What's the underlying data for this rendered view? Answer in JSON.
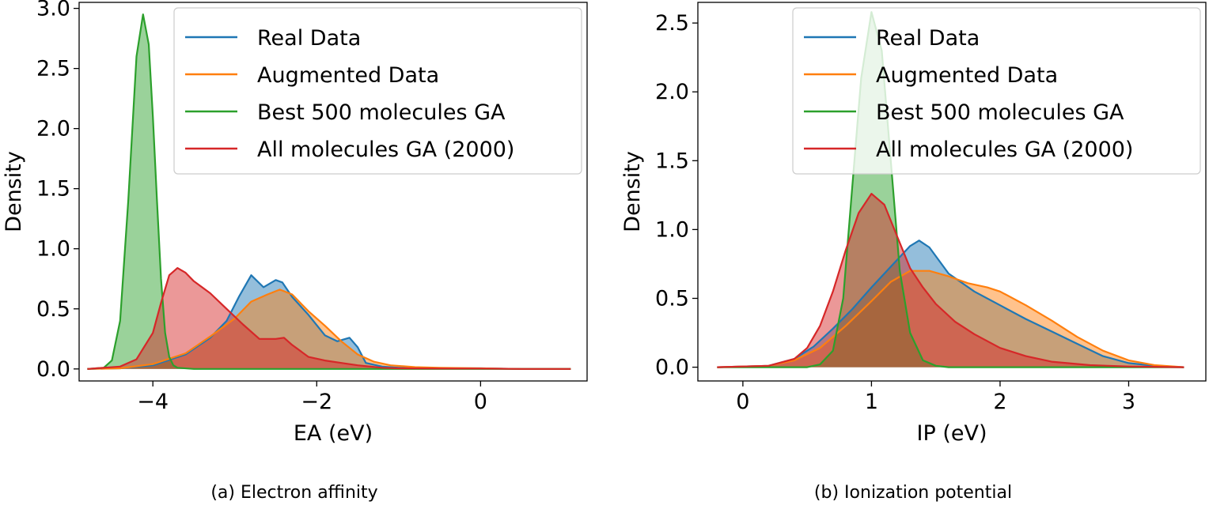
{
  "chart_data": [
    {
      "type": "area",
      "caption": "(a) Electron affinity",
      "xlabel": "EA (eV)",
      "ylabel": "Density",
      "xlim": [
        -4.9,
        1.3
      ],
      "ylim": [
        -0.1,
        3.05
      ],
      "xticks": [
        -4,
        -2,
        0
      ],
      "xtick_labels": [
        "−4",
        "−2",
        "0"
      ],
      "yticks": [
        0.0,
        0.5,
        1.0,
        1.5,
        2.0,
        2.5,
        3.0
      ],
      "ytick_labels": [
        "0.0",
        "0.5",
        "1.0",
        "1.5",
        "2.0",
        "2.5",
        "3.0"
      ],
      "grid": false,
      "legend_position": "top-right",
      "series": [
        {
          "name": "Real Data",
          "color": "#1f77b4",
          "x": [
            -4.8,
            -4.4,
            -4.0,
            -3.6,
            -3.3,
            -3.1,
            -2.95,
            -2.8,
            -2.65,
            -2.5,
            -2.42,
            -2.3,
            -2.1,
            -1.9,
            -1.75,
            -1.6,
            -1.5,
            -1.4,
            -1.2,
            -1.0,
            -0.5,
            0.0,
            0.5,
            1.1
          ],
          "y": [
            0.0,
            0.005,
            0.03,
            0.12,
            0.26,
            0.4,
            0.6,
            0.78,
            0.68,
            0.74,
            0.72,
            0.6,
            0.45,
            0.28,
            0.23,
            0.26,
            0.18,
            0.05,
            0.02,
            0.01,
            0.005,
            0.005,
            0.0,
            0.0
          ]
        },
        {
          "name": "Augmented Data",
          "color": "#ff7f0e",
          "x": [
            -4.8,
            -4.4,
            -4.0,
            -3.6,
            -3.3,
            -3.0,
            -2.8,
            -2.6,
            -2.45,
            -2.3,
            -2.1,
            -1.9,
            -1.7,
            -1.5,
            -1.3,
            -1.1,
            -0.8,
            -0.5,
            0.0,
            0.5,
            1.1
          ],
          "y": [
            0.0,
            0.005,
            0.04,
            0.13,
            0.27,
            0.42,
            0.56,
            0.62,
            0.66,
            0.62,
            0.48,
            0.36,
            0.23,
            0.12,
            0.06,
            0.03,
            0.015,
            0.01,
            0.005,
            0.0,
            0.0
          ]
        },
        {
          "name": "Best 500 molecules GA",
          "color": "#2ca02c",
          "x": [
            -4.8,
            -4.6,
            -4.5,
            -4.4,
            -4.3,
            -4.2,
            -4.12,
            -4.05,
            -4.0,
            -3.95,
            -3.9,
            -3.85,
            -3.8,
            -3.75,
            -3.7,
            -3.5,
            -3.0,
            1.1
          ],
          "y": [
            0.0,
            0.01,
            0.07,
            0.4,
            1.4,
            2.6,
            2.95,
            2.7,
            2.1,
            1.4,
            0.75,
            0.3,
            0.1,
            0.03,
            0.01,
            0.0,
            0.0,
            0.0
          ]
        },
        {
          "name": "All molecules GA (2000)",
          "color": "#d62728",
          "x": [
            -4.8,
            -4.4,
            -4.2,
            -4.0,
            -3.9,
            -3.8,
            -3.7,
            -3.6,
            -3.5,
            -3.3,
            -3.1,
            -2.9,
            -2.7,
            -2.5,
            -2.4,
            -2.3,
            -2.1,
            -1.9,
            -1.7,
            -1.5,
            -1.2,
            -1.0,
            -0.5,
            0.0,
            0.5,
            1.1
          ],
          "y": [
            0.0,
            0.02,
            0.08,
            0.3,
            0.55,
            0.78,
            0.84,
            0.8,
            0.73,
            0.63,
            0.5,
            0.37,
            0.25,
            0.25,
            0.26,
            0.2,
            0.1,
            0.07,
            0.05,
            0.03,
            0.01,
            0.005,
            0.003,
            0.003,
            0.0,
            0.0
          ]
        }
      ]
    },
    {
      "type": "area",
      "caption": "(b) Ionization potential",
      "xlabel": "IP (eV)",
      "ylabel": "Density",
      "xlim": [
        -0.35,
        3.6
      ],
      "ylim": [
        -0.1,
        2.65
      ],
      "xticks": [
        0,
        1,
        2,
        3
      ],
      "xtick_labels": [
        "0",
        "1",
        "2",
        "3"
      ],
      "yticks": [
        0.0,
        0.5,
        1.0,
        1.5,
        2.0,
        2.5
      ],
      "ytick_labels": [
        "0.0",
        "0.5",
        "1.0",
        "1.5",
        "2.0",
        "2.5"
      ],
      "grid": false,
      "legend_position": "top-right",
      "series": [
        {
          "name": "Real Data",
          "color": "#1f77b4",
          "x": [
            -0.2,
            0.2,
            0.4,
            0.55,
            0.7,
            0.85,
            1.0,
            1.1,
            1.2,
            1.3,
            1.37,
            1.45,
            1.6,
            1.8,
            2.0,
            2.2,
            2.4,
            2.6,
            2.8,
            3.0,
            3.2,
            3.43
          ],
          "y": [
            0.0,
            0.01,
            0.06,
            0.15,
            0.28,
            0.42,
            0.58,
            0.68,
            0.78,
            0.88,
            0.92,
            0.87,
            0.68,
            0.55,
            0.45,
            0.35,
            0.26,
            0.17,
            0.08,
            0.03,
            0.01,
            0.0
          ]
        },
        {
          "name": "Augmented Data",
          "color": "#ff7f0e",
          "x": [
            -0.2,
            0.2,
            0.4,
            0.6,
            0.8,
            1.0,
            1.15,
            1.3,
            1.45,
            1.6,
            1.75,
            1.9,
            2.0,
            2.2,
            2.4,
            2.6,
            2.8,
            3.0,
            3.2,
            3.43
          ],
          "y": [
            0.0,
            0.01,
            0.05,
            0.14,
            0.3,
            0.48,
            0.62,
            0.7,
            0.7,
            0.66,
            0.61,
            0.58,
            0.55,
            0.45,
            0.34,
            0.22,
            0.12,
            0.05,
            0.015,
            0.0
          ]
        },
        {
          "name": "Best 500 molecules GA",
          "color": "#2ca02c",
          "x": [
            -0.2,
            0.5,
            0.6,
            0.7,
            0.78,
            0.85,
            0.92,
            1.0,
            1.08,
            1.15,
            1.22,
            1.3,
            1.4,
            1.5,
            1.6,
            3.43
          ],
          "y": [
            0.0,
            0.0,
            0.02,
            0.12,
            0.5,
            1.3,
            2.1,
            2.58,
            2.3,
            1.5,
            0.7,
            0.25,
            0.05,
            0.01,
            0.0,
            0.0
          ]
        },
        {
          "name": "All molecules GA (2000)",
          "color": "#d62728",
          "x": [
            -0.2,
            0.2,
            0.4,
            0.5,
            0.6,
            0.7,
            0.8,
            0.9,
            1.0,
            1.1,
            1.2,
            1.3,
            1.4,
            1.5,
            1.65,
            1.8,
            2.0,
            2.2,
            2.4,
            2.7,
            3.0,
            3.43
          ],
          "y": [
            0.0,
            0.01,
            0.06,
            0.14,
            0.3,
            0.55,
            0.85,
            1.12,
            1.26,
            1.18,
            0.95,
            0.72,
            0.58,
            0.46,
            0.33,
            0.24,
            0.14,
            0.08,
            0.04,
            0.015,
            0.005,
            0.0
          ]
        }
      ]
    }
  ]
}
